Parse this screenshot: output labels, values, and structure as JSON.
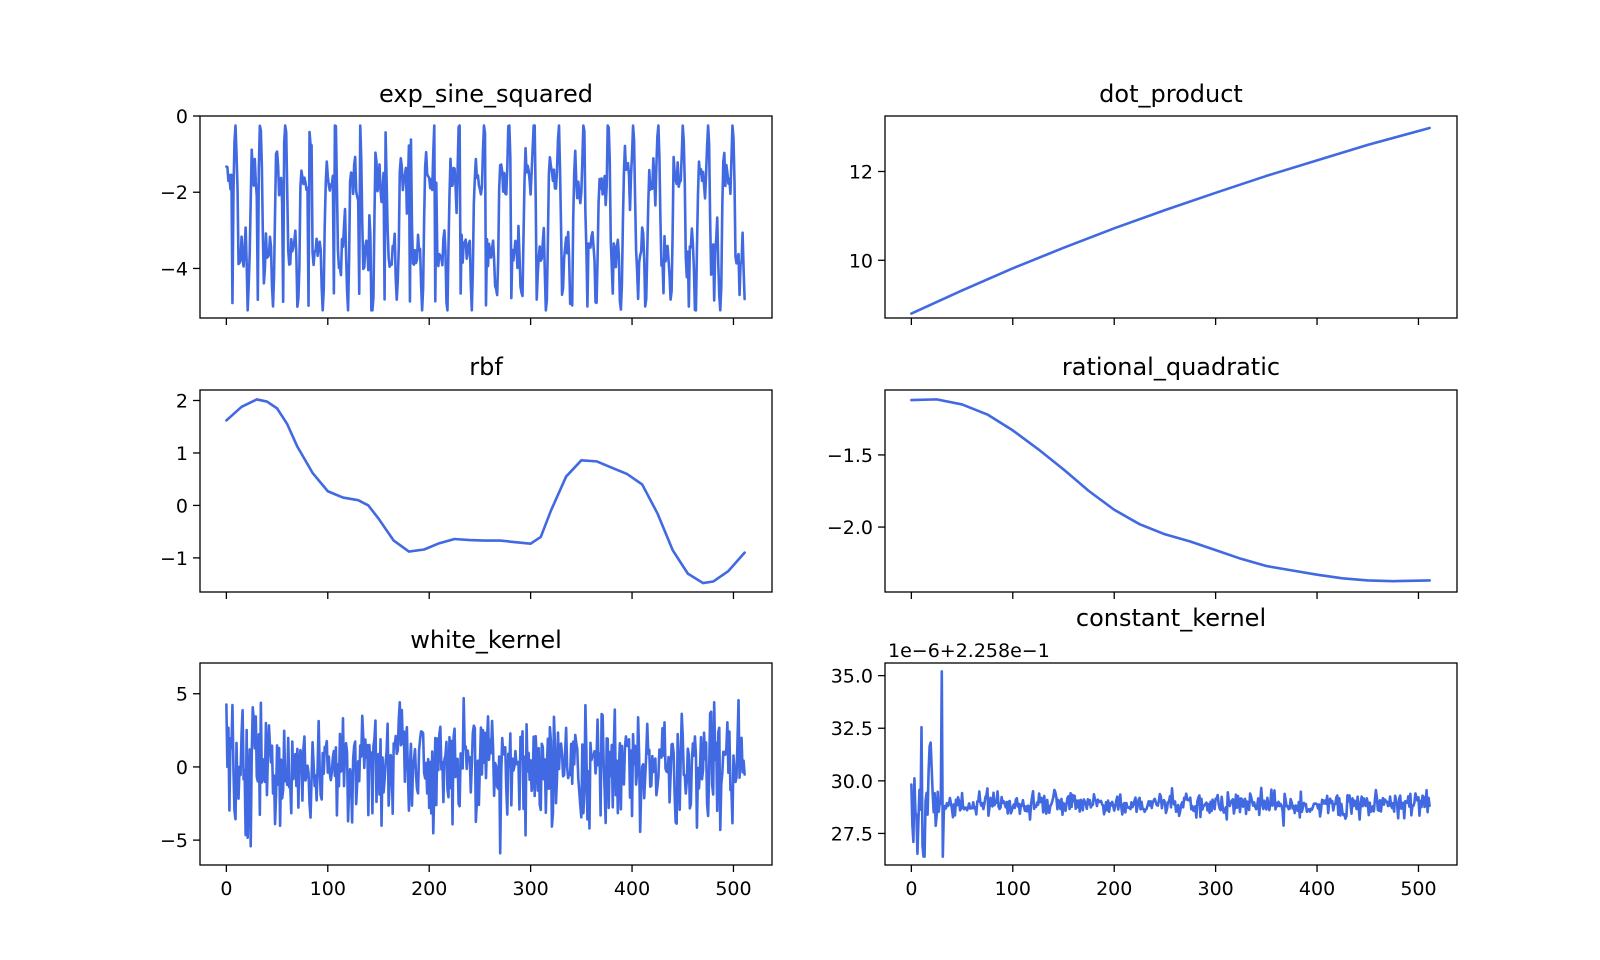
{
  "figure": {
    "background": "#ffffff",
    "line_color": "#4169e1"
  },
  "chart_data": [
    {
      "type": "line",
      "title": "exp_sine_squared",
      "xlim": [
        -26,
        538
      ],
      "ylim": [
        -5.3,
        0
      ],
      "xticks": [
        0,
        100,
        200,
        300,
        400,
        500
      ],
      "show_xticklabels": false,
      "yticks": [
        -4,
        -2,
        0
      ],
      "ytick_labels": [
        "−4",
        "−2",
        "0"
      ],
      "offset_text": "",
      "generator": "periodic",
      "n_points": 512,
      "approx_period": 24.5,
      "values_sample": [
        -3.45,
        -0.4,
        -2.3,
        -3.2,
        -0.3,
        -2.7,
        -4.8,
        -2.2,
        -3.6,
        -0.9,
        -2.5,
        -4.9,
        -0.45,
        -2.4,
        -3.3
      ],
      "y_range_observed": [
        -5.1,
        -0.25
      ],
      "series": [
        {
          "values": []
        }
      ]
    },
    {
      "type": "line",
      "title": "dot_product",
      "xlim": [
        -26,
        538
      ],
      "ylim": [
        8.7,
        13.25
      ],
      "xticks": [
        0,
        100,
        200,
        300,
        400,
        500
      ],
      "show_xticklabels": false,
      "yticks": [
        10,
        12
      ],
      "ytick_labels": [
        "10",
        "12"
      ],
      "offset_text": "",
      "generator": "points",
      "series": [
        {
          "x": [
            0,
            50,
            100,
            150,
            200,
            250,
            300,
            350,
            400,
            450,
            511
          ],
          "values": [
            8.8,
            9.32,
            9.82,
            10.28,
            10.72,
            11.13,
            11.52,
            11.9,
            12.25,
            12.6,
            12.98
          ]
        }
      ]
    },
    {
      "type": "line",
      "title": "rbf",
      "xlim": [
        -26,
        538
      ],
      "ylim": [
        -1.65,
        2.2
      ],
      "xticks": [
        0,
        100,
        200,
        300,
        400,
        500
      ],
      "show_xticklabels": false,
      "yticks": [
        -1,
        0,
        1,
        2
      ],
      "ytick_labels": [
        "−1",
        "0",
        "1",
        "2"
      ],
      "offset_text": "",
      "generator": "points",
      "series": [
        {
          "x": [
            0,
            15,
            30,
            40,
            50,
            60,
            70,
            85,
            100,
            115,
            130,
            140,
            150,
            165,
            180,
            195,
            210,
            225,
            240,
            255,
            270,
            285,
            300,
            310,
            320,
            335,
            350,
            365,
            380,
            395,
            410,
            425,
            440,
            455,
            470,
            480,
            495,
            511
          ],
          "values": [
            1.62,
            1.88,
            2.02,
            1.98,
            1.85,
            1.55,
            1.12,
            0.62,
            0.27,
            0.15,
            0.1,
            0.0,
            -0.25,
            -0.67,
            -0.88,
            -0.84,
            -0.72,
            -0.64,
            -0.66,
            -0.67,
            -0.67,
            -0.7,
            -0.73,
            -0.6,
            -0.1,
            0.55,
            0.86,
            0.84,
            0.72,
            0.6,
            0.4,
            -0.15,
            -0.85,
            -1.3,
            -1.48,
            -1.45,
            -1.25,
            -0.9
          ]
        }
      ]
    },
    {
      "type": "line",
      "title": "rational_quadratic",
      "xlim": [
        -26,
        538
      ],
      "ylim": [
        -2.45,
        -1.05
      ],
      "xticks": [
        0,
        100,
        200,
        300,
        400,
        500
      ],
      "show_xticklabels": false,
      "yticks": [
        -2.0,
        -1.5
      ],
      "ytick_labels": [
        "−2.0",
        "−1.5"
      ],
      "offset_text": "",
      "generator": "points",
      "series": [
        {
          "x": [
            0,
            25,
            50,
            75,
            100,
            125,
            150,
            175,
            200,
            225,
            250,
            275,
            300,
            325,
            350,
            375,
            400,
            425,
            450,
            475,
            511
          ],
          "values": [
            -1.12,
            -1.115,
            -1.15,
            -1.22,
            -1.33,
            -1.46,
            -1.6,
            -1.75,
            -1.88,
            -1.98,
            -2.05,
            -2.1,
            -2.16,
            -2.22,
            -2.27,
            -2.3,
            -2.33,
            -2.355,
            -2.37,
            -2.375,
            -2.37
          ]
        }
      ]
    },
    {
      "type": "line",
      "title": "white_kernel",
      "xlim": [
        -26,
        538
      ],
      "ylim": [
        -6.7,
        7.1
      ],
      "xticks": [
        0,
        100,
        200,
        300,
        400,
        500
      ],
      "show_xticklabels": true,
      "xtick_labels": [
        "0",
        "100",
        "200",
        "300",
        "400",
        "500"
      ],
      "yticks": [
        -5,
        0,
        5
      ],
      "ytick_labels": [
        "−5",
        "0",
        "5"
      ],
      "offset_text": "",
      "generator": "noise",
      "n_points": 512,
      "noise_std": 2.0,
      "y_range_observed": [
        -6.0,
        6.5
      ],
      "series": [
        {
          "values": []
        }
      ]
    },
    {
      "type": "line",
      "title": "constant_kernel",
      "xlim": [
        -26,
        538
      ],
      "ylim": [
        26.0,
        35.6
      ],
      "xticks": [
        0,
        100,
        200,
        300,
        400,
        500
      ],
      "show_xticklabels": true,
      "xtick_labels": [
        "0",
        "100",
        "200",
        "300",
        "400",
        "500"
      ],
      "yticks": [
        27.5,
        30.0,
        32.5,
        35.0
      ],
      "ytick_labels": [
        "27.5",
        "30.0",
        "32.5",
        "35.0"
      ],
      "offset_text": "1e−6+2.258e−1",
      "generator": "noise_burst",
      "n_points": 512,
      "baseline": 28.9,
      "noise_std": 0.3,
      "burst_end": 32,
      "burst_std": 1.9,
      "burst_peak": [
        30,
        35.2
      ],
      "y_range_observed": [
        26.4,
        35.2
      ],
      "series": [
        {
          "values": []
        }
      ]
    }
  ]
}
